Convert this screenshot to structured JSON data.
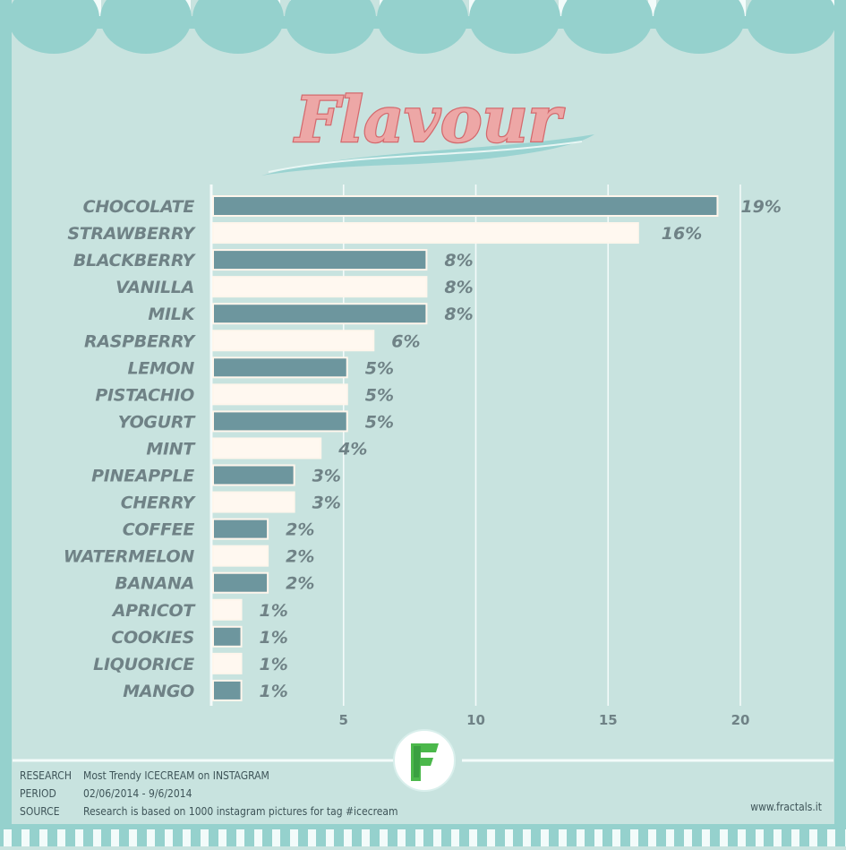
{
  "title": "Flavour",
  "chart_data": {
    "type": "bar",
    "orientation": "horizontal",
    "title": "Flavour",
    "categories": [
      "CHOCOLATE",
      "STRAWBERRY",
      "BLACKBERRY",
      "VANILLA",
      "MILK",
      "RASPBERRY",
      "LEMON",
      "PISTACHIO",
      "YOGURT",
      "MINT",
      "PINEAPPLE",
      "CHERRY",
      "COFFEE",
      "WATERMELON",
      "BANANA",
      "APRICOT",
      "COOKIES",
      "LIQUORICE",
      "MANGO"
    ],
    "values": [
      19,
      16,
      8,
      8,
      8,
      6,
      5,
      5,
      5,
      4,
      3,
      3,
      2,
      2,
      2,
      1,
      1,
      1,
      1
    ],
    "value_labels": [
      "19%",
      "16%",
      "8%",
      "8%",
      "8%",
      "6%",
      "5%",
      "5%",
      "5%",
      "4%",
      "3%",
      "3%",
      "2%",
      "2%",
      "2%",
      "1%",
      "1%",
      "1%",
      "1%"
    ],
    "x_ticks": [
      5,
      10,
      15,
      20
    ],
    "xlim": [
      0,
      20
    ],
    "grid": "vertical",
    "bar_colors": [
      "#6d969e",
      "#fff8f0"
    ]
  },
  "footer": {
    "rows": [
      {
        "key": "RESEARCH",
        "value": "Most Trendy ICECREAM on INSTAGRAM"
      },
      {
        "key": "PERIOD",
        "value": "02/06/2014 - 9/6/2014"
      },
      {
        "key": "SOURCE",
        "value": "Research is based on 1000 instagram pictures for tag #icecream"
      }
    ],
    "website": "www.fractals.it",
    "logo_letter": "F"
  },
  "colors": {
    "background": "#c8e3df",
    "border": "#93d0cd",
    "title_fill": "#eda7a6",
    "title_stroke": "#d4696d",
    "text": "#6f8286"
  }
}
